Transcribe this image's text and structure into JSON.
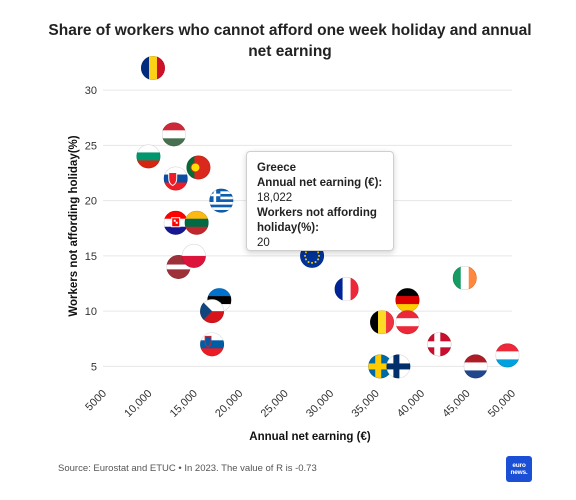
{
  "chart_data": {
    "type": "scatter",
    "title": "Share of workers who cannot afford one week holiday and annual net earning",
    "xlabel": "Annual net earning (€)",
    "ylabel": "Workers not affording holiday(%)",
    "xlim": [
      5000,
      50000
    ],
    "ylim": [
      3.5,
      32
    ],
    "x_ticks": [
      "5000",
      "10,000",
      "15,000",
      "20,000",
      "25,000",
      "30,000",
      "35,000",
      "40,000",
      "45,000",
      "50,000"
    ],
    "y_ticks": [
      "5",
      "10",
      "15",
      "20",
      "25",
      "30"
    ],
    "grid": true,
    "points": [
      {
        "flag": "romania",
        "x": 10500,
        "y": 32
      },
      {
        "flag": "hungary",
        "x": 12800,
        "y": 26
      },
      {
        "flag": "bulgaria",
        "x": 10000,
        "y": 24
      },
      {
        "flag": "portugal",
        "x": 15500,
        "y": 23
      },
      {
        "flag": "slovakia",
        "x": 13000,
        "y": 22
      },
      {
        "flag": "greece",
        "x": 18022,
        "y": 20
      },
      {
        "flag": "croatia",
        "x": 13000,
        "y": 18
      },
      {
        "flag": "lithuania",
        "x": 15300,
        "y": 18
      },
      {
        "flag": "latvia",
        "x": 13300,
        "y": 14
      },
      {
        "flag": "poland",
        "x": 15000,
        "y": 15
      },
      {
        "flag": "eu",
        "x": 28000,
        "y": 15
      },
      {
        "flag": "estonia",
        "x": 17800,
        "y": 11
      },
      {
        "flag": "czechia",
        "x": 17000,
        "y": 10
      },
      {
        "flag": "slovenia",
        "x": 17000,
        "y": 7
      },
      {
        "flag": "france",
        "x": 31800,
        "y": 12
      },
      {
        "flag": "germany",
        "x": 38500,
        "y": 11
      },
      {
        "flag": "belgium",
        "x": 35700,
        "y": 9
      },
      {
        "flag": "austria",
        "x": 38500,
        "y": 9
      },
      {
        "flag": "ireland",
        "x": 44800,
        "y": 13
      },
      {
        "flag": "denmark",
        "x": 42000,
        "y": 7
      },
      {
        "flag": "sweden",
        "x": 35500,
        "y": 5
      },
      {
        "flag": "finland",
        "x": 37500,
        "y": 5
      },
      {
        "flag": "netherlands",
        "x": 46000,
        "y": 5
      },
      {
        "flag": "luxembourg",
        "x": 49500,
        "y": 6
      }
    ],
    "tooltip": {
      "country": "Greece",
      "label_x": "Annual net earning (€):",
      "value_x": "18,022",
      "label_y": "Workers not affording holiday(%):",
      "value_y": "20"
    },
    "source": "Source: Eurostat and ETUC • In 2023. The value of R is -0.73"
  },
  "brand": {
    "logo_text": "euro news.",
    "color": "#1b4fd6"
  }
}
